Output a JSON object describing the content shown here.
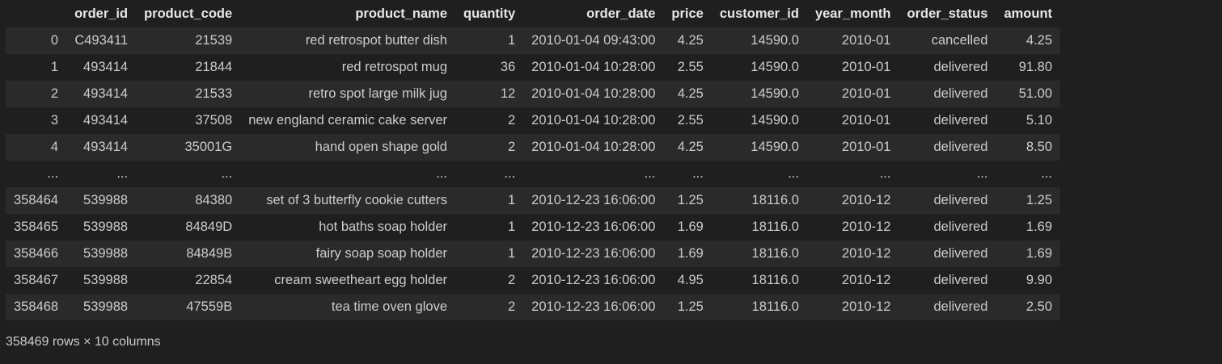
{
  "table": {
    "index_header": "",
    "columns": [
      "order_id",
      "product_code",
      "product_name",
      "quantity",
      "order_date",
      "price",
      "customer_id",
      "year_month",
      "order_status",
      "amount"
    ],
    "rows": [
      {
        "index": "0",
        "cells": [
          "C493411",
          "21539",
          "red retrospot butter dish",
          "1",
          "2010-01-04 09:43:00",
          "4.25",
          "14590.0",
          "2010-01",
          "cancelled",
          "4.25"
        ]
      },
      {
        "index": "1",
        "cells": [
          "493414",
          "21844",
          "red retrospot mug",
          "36",
          "2010-01-04 10:28:00",
          "2.55",
          "14590.0",
          "2010-01",
          "delivered",
          "91.80"
        ]
      },
      {
        "index": "2",
        "cells": [
          "493414",
          "21533",
          "retro spot large milk jug",
          "12",
          "2010-01-04 10:28:00",
          "4.25",
          "14590.0",
          "2010-01",
          "delivered",
          "51.00"
        ]
      },
      {
        "index": "3",
        "cells": [
          "493414",
          "37508",
          "new england ceramic cake server",
          "2",
          "2010-01-04 10:28:00",
          "2.55",
          "14590.0",
          "2010-01",
          "delivered",
          "5.10"
        ]
      },
      {
        "index": "4",
        "cells": [
          "493414",
          "35001G",
          "hand open shape gold",
          "2",
          "2010-01-04 10:28:00",
          "4.25",
          "14590.0",
          "2010-01",
          "delivered",
          "8.50"
        ]
      },
      {
        "index": "...",
        "cells": [
          "...",
          "...",
          "...",
          "...",
          "...",
          "...",
          "...",
          "...",
          "...",
          "..."
        ]
      },
      {
        "index": "358464",
        "cells": [
          "539988",
          "84380",
          "set of 3 butterfly cookie cutters",
          "1",
          "2010-12-23 16:06:00",
          "1.25",
          "18116.0",
          "2010-12",
          "delivered",
          "1.25"
        ]
      },
      {
        "index": "358465",
        "cells": [
          "539988",
          "84849D",
          "hot baths soap holder",
          "1",
          "2010-12-23 16:06:00",
          "1.69",
          "18116.0",
          "2010-12",
          "delivered",
          "1.69"
        ]
      },
      {
        "index": "358466",
        "cells": [
          "539988",
          "84849B",
          "fairy soap soap holder",
          "1",
          "2010-12-23 16:06:00",
          "1.69",
          "18116.0",
          "2010-12",
          "delivered",
          "1.69"
        ]
      },
      {
        "index": "358467",
        "cells": [
          "539988",
          "22854",
          "cream sweetheart egg holder",
          "2",
          "2010-12-23 16:06:00",
          "4.95",
          "18116.0",
          "2010-12",
          "delivered",
          "9.90"
        ]
      },
      {
        "index": "358468",
        "cells": [
          "539988",
          "47559B",
          "tea time oven glove",
          "2",
          "2010-12-23 16:06:00",
          "1.25",
          "18116.0",
          "2010-12",
          "delivered",
          "2.50"
        ]
      }
    ]
  },
  "footer": "358469 rows × 10 columns",
  "colors": {
    "background": "#1f1f1f",
    "row_stripe": "#2a2a2a",
    "text": "#cccccc"
  }
}
